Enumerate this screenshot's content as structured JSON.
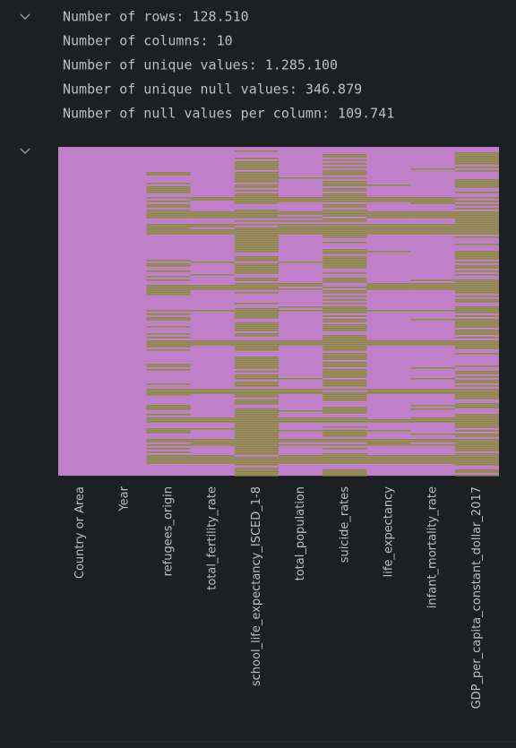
{
  "output": {
    "lines": [
      "Number of rows: 128.510",
      "Number of columns: 10",
      "Number of unique values: 1.285.100",
      "Number of unique null values: 346.879",
      "Number of null values per column: 109.741"
    ]
  },
  "heatmap": {
    "columns": [
      "Country or Area",
      "Year",
      "refugees_origin",
      "total_fertility_rate",
      "school_life_expectancy_ISCED_1-8",
      "total_population",
      "suicide_rates",
      "life_expectancy",
      "infant_mortality_rate",
      "GDP_per_capita_constant_dollar_2017"
    ]
  }
}
